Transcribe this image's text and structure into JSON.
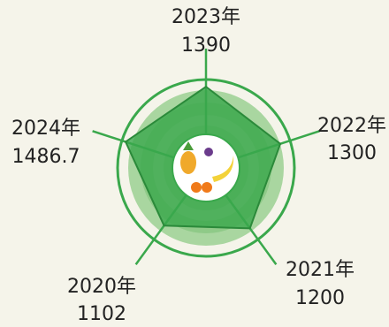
{
  "chart_data": {
    "type": "radar",
    "categories": [
      "2023年",
      "2022年",
      "2021年",
      "2020年",
      "2024年"
    ],
    "values": [
      1390,
      1300,
      1200,
      1102,
      1486.7
    ],
    "color": "#3aa84c",
    "rlim": [
      0,
      1600
    ]
  }
}
